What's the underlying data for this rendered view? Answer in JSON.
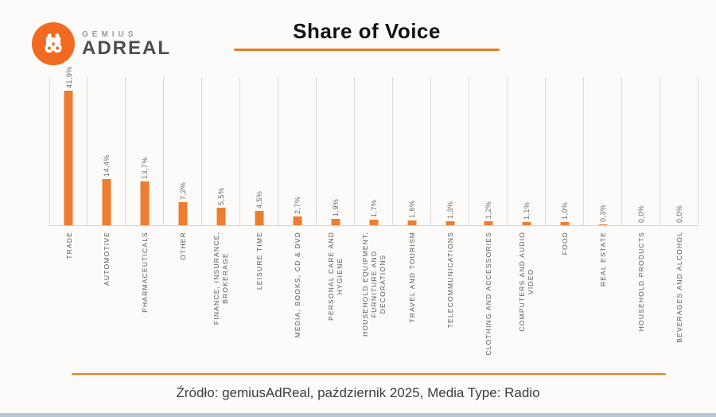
{
  "logo": {
    "brand_top": "GEMIUS",
    "brand_bottom": "ADREAL",
    "icon": "binoculars-icon"
  },
  "header": {
    "title": "Share of Voice"
  },
  "chart_data": {
    "type": "bar",
    "title": "Share of Voice",
    "orientation": "vertical",
    "unit": "%",
    "bar_color": "#ED7D31",
    "grid": "vertical category separator lines, light gray",
    "legend": "none",
    "ylim": [
      0,
      46
    ],
    "categories": [
      "TRADE",
      "AUTOMOTIVE",
      "PHARMACEUTICALS",
      "OTHER",
      "FINANCE, INSURANCE, BROKERAGE",
      "LEISURE TIME",
      "MEDIA, BOOKS, CD & DVD",
      "PERSONAL CARE AND HYGIENE",
      "HOUSEHOLD EQUIPMENT, FURNITURE AND DECORATIONS",
      "TRAVEL AND TOURISM",
      "TELECOMMUNICATIONS",
      "CLOTHING AND ACCESSORIES",
      "COMPUTERS AND AUDIO VIDEO",
      "FOOD",
      "REAL ESTATE",
      "HOUSEHOLD PRODUCTS",
      "BEVERAGES AND ALCOHOL"
    ],
    "category_display": [
      "TRADE",
      "AUTOMOTIVE",
      "PHARMACEUTICALS",
      "OTHER",
      "FINANCE, INSURANCE,\nBROKERAGE",
      "LEISURE TIME",
      "MEDIA, BOOKS, CD & DVD",
      "PERSONAL CARE AND\nHYGIENE",
      "HOUSEHOLD EQUIPMENT,\nFURNITURE AND\nDECORATIONS",
      "TRAVEL AND TOURISM",
      "TELECOMMUNICATIONS",
      "CLOTHING AND ACCESSORIES",
      "COMPUTERS AND AUDIO\nVIDEO",
      "FOOD",
      "REAL ESTATE",
      "HOUSEHOLD PRODUCTS",
      "BEVERAGES AND ALCOHOL"
    ],
    "values": [
      41.9,
      14.4,
      13.7,
      7.2,
      5.5,
      4.5,
      2.7,
      1.9,
      1.7,
      1.6,
      1.3,
      1.2,
      1.1,
      1.0,
      0.3,
      0.0,
      0.0
    ],
    "value_labels": [
      "41,9%",
      "14,4%",
      "13,7%",
      "7,2%",
      "5,5%",
      "4,5%",
      "2,7%",
      "1,9%",
      "1,7%",
      "1,6%",
      "1,3%",
      "1,2%",
      "1,1%",
      "1,0%",
      "0,3%",
      "0,0%",
      "0,0%"
    ]
  },
  "footer": {
    "source": "Źródło: gemiusAdReal, październik 2025, Media Type: Radio"
  },
  "colors": {
    "accent": "#E87D2B",
    "bar": "#ED7D31",
    "logo_orange": "#F26A21",
    "label_gray": "#595959",
    "gridline": "#DBDBDB",
    "bottom_strip": "#B7C6D3",
    "background": "#FCFBF9"
  }
}
